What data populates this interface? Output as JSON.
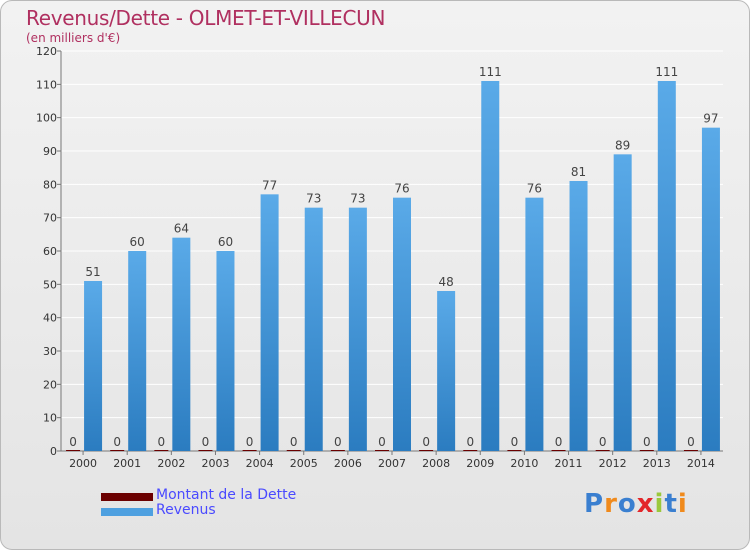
{
  "header": {
    "title": "Revenus/Dette - OLMET-ET-VILLECUN",
    "subtitle": "(en milliers d'€)"
  },
  "legend": {
    "items": [
      {
        "label": "Montant de la Dette",
        "color": "#6b0000"
      },
      {
        "label": "Revenus",
        "color": "#4ea0e0"
      }
    ]
  },
  "logo": {
    "text": "Proxiti"
  },
  "chart_data": {
    "type": "bar",
    "categories": [
      "2000",
      "2001",
      "2002",
      "2003",
      "2004",
      "2005",
      "2006",
      "2007",
      "2008",
      "2009",
      "2010",
      "2011",
      "2012",
      "2013",
      "2014"
    ],
    "series": [
      {
        "name": "Montant de la Dette",
        "color": "#6b0000",
        "values": [
          0,
          0,
          0,
          0,
          0,
          0,
          0,
          0,
          0,
          0,
          0,
          0,
          0,
          0,
          0
        ]
      },
      {
        "name": "Revenus",
        "color": "#4ea0e0",
        "values": [
          51,
          60,
          64,
          60,
          77,
          73,
          73,
          76,
          48,
          111,
          76,
          81,
          89,
          111,
          97
        ]
      }
    ],
    "ylim": [
      0,
      120
    ],
    "yticks": [
      0,
      10,
      20,
      30,
      40,
      50,
      60,
      70,
      80,
      90,
      100,
      110,
      120
    ],
    "grid": true
  }
}
